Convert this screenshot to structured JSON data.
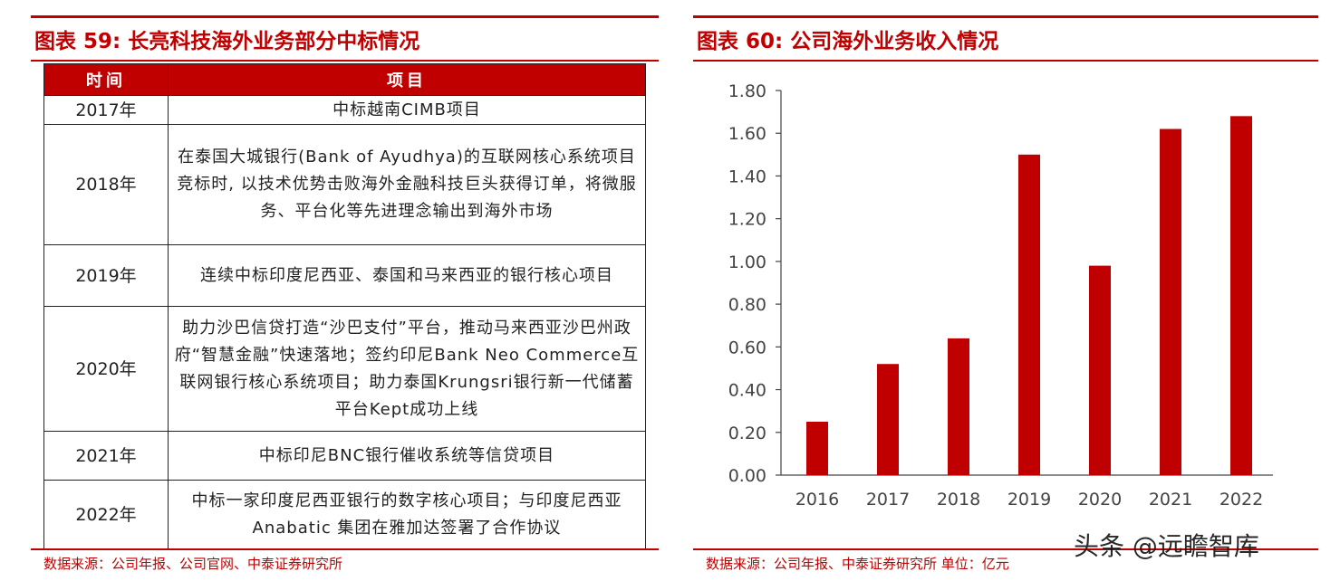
{
  "left": {
    "title": "图表 59:  长亮科技海外业务部分中标情况",
    "table": {
      "headers": [
        "时间",
        "项目"
      ],
      "rows": [
        {
          "year": "2017年",
          "item": "中标越南CIMB项目"
        },
        {
          "year": "2018年",
          "item": "在泰国大城银行(Bank of Ayudhya)的互联网核心系统项目竞标时, 以技术优势击败海外金融科技巨头获得订单，将微服务、平台化等先进理念输出到海外市场"
        },
        {
          "year": "2019年",
          "item": "连续中标印度尼西亚、泰国和马来西亚的银行核心项目"
        },
        {
          "year": "2020年",
          "item": "助力沙巴信贷打造“沙巴支付”平台，推动马来西亚沙巴州政府“智慧金融”快速落地；签约印尼Bank Neo Commerce互联网银行核心系统项目；助力泰国Krungsri银行新一代储蓄平台Kept成功上线"
        },
        {
          "year": "2021年",
          "item": "中标印尼BNC银行催收系统等信贷项目"
        },
        {
          "year": "2022年",
          "item": "中标一家印度尼西亚银行的数字核心项目；与印度尼西亚 Anabatic 集团在雅加达签署了合作协议"
        }
      ]
    },
    "source": "数据来源：公司年报、公司官网、中泰证券研究所"
  },
  "right": {
    "title": "图表 60:  公司海外业务收入情况",
    "source": "数据来源：公司年报、中泰证券研究所 单位：亿元"
  },
  "watermark": "头条 @远瞻智库",
  "colors": {
    "accent": "#c00000",
    "bar": "#c00000"
  },
  "chart_data": {
    "type": "bar",
    "categories": [
      "2016",
      "2017",
      "2018",
      "2019",
      "2020",
      "2021",
      "2022"
    ],
    "values": [
      0.25,
      0.52,
      0.64,
      1.5,
      0.98,
      1.62,
      1.68
    ],
    "title": "",
    "xlabel": "",
    "ylabel": "",
    "ylim": [
      0,
      1.8
    ],
    "yticks": [
      "0.00",
      "0.20",
      "0.40",
      "0.60",
      "0.80",
      "1.00",
      "1.20",
      "1.40",
      "1.60",
      "1.80"
    ],
    "grid": false,
    "legend": "none"
  }
}
